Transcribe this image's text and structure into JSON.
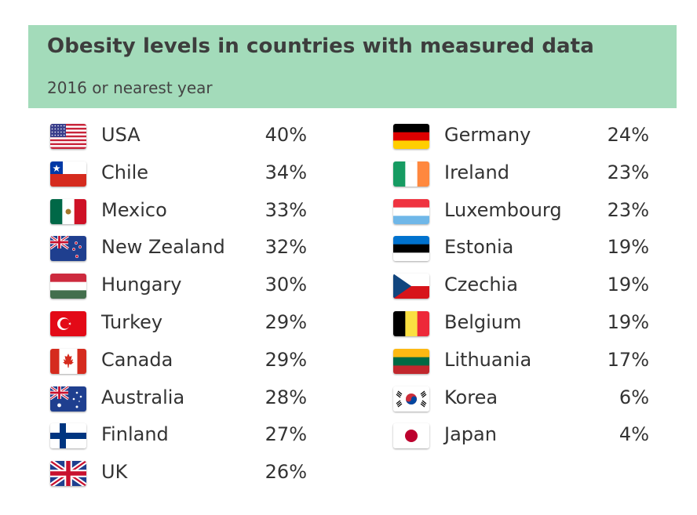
{
  "chart_data": {
    "type": "table",
    "title": "Obesity levels in countries with measured data",
    "subtitle": "2016 or nearest year",
    "unit": "%",
    "columns": [
      [
        {
          "country": "USA",
          "value_label": "40%",
          "value": 40,
          "flag": "us-flag-icon"
        },
        {
          "country": "Chile",
          "value_label": "34%",
          "value": 34,
          "flag": "chile-flag-icon"
        },
        {
          "country": "Mexico",
          "value_label": "33%",
          "value": 33,
          "flag": "mexico-flag-icon"
        },
        {
          "country": "New Zealand",
          "value_label": "32%",
          "value": 32,
          "flag": "new-zealand-flag-icon"
        },
        {
          "country": "Hungary",
          "value_label": "30%",
          "value": 30,
          "flag": "hungary-flag-icon"
        },
        {
          "country": "Turkey",
          "value_label": "29%",
          "value": 29,
          "flag": "turkey-flag-icon"
        },
        {
          "country": "Canada",
          "value_label": "29%",
          "value": 29,
          "flag": "canada-flag-icon"
        },
        {
          "country": "Australia",
          "value_label": "28%",
          "value": 28,
          "flag": "australia-flag-icon"
        },
        {
          "country": "Finland",
          "value_label": "27%",
          "value": 27,
          "flag": "finland-flag-icon"
        },
        {
          "country": "UK",
          "value_label": "26%",
          "value": 26,
          "flag": "uk-flag-icon"
        }
      ],
      [
        {
          "country": "Germany",
          "value_label": "24%",
          "value": 24,
          "flag": "germany-flag-icon"
        },
        {
          "country": "Ireland",
          "value_label": "23%",
          "value": 23,
          "flag": "ireland-flag-icon"
        },
        {
          "country": "Luxembourg",
          "value_label": "23%",
          "value": 23,
          "flag": "luxembourg-flag-icon"
        },
        {
          "country": "Estonia",
          "value_label": "19%",
          "value": 19,
          "flag": "estonia-flag-icon"
        },
        {
          "country": "Czechia",
          "value_label": "19%",
          "value": 19,
          "flag": "czechia-flag-icon"
        },
        {
          "country": "Belgium",
          "value_label": "19%",
          "value": 19,
          "flag": "belgium-flag-icon"
        },
        {
          "country": "Lithuania",
          "value_label": "17%",
          "value": 17,
          "flag": "lithuania-flag-icon"
        },
        {
          "country": "Korea",
          "value_label": "6%",
          "value": 6,
          "flag": "korea-flag-icon"
        },
        {
          "country": "Japan",
          "value_label": "4%",
          "value": 4,
          "flag": "japan-flag-icon"
        }
      ]
    ]
  },
  "colors": {
    "header_bg": "#a3dbba",
    "title_text": "#3d3d3d",
    "body_text": "#333333"
  }
}
